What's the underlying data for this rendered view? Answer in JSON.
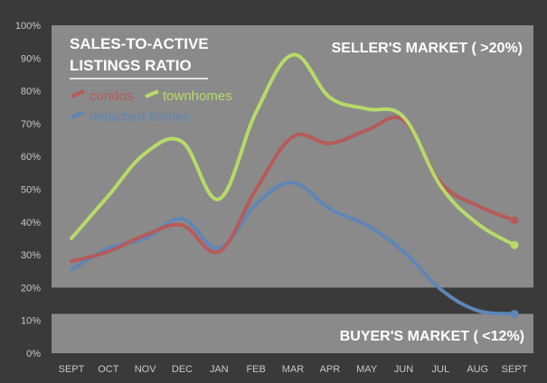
{
  "chart_data": {
    "type": "line",
    "title_lines": [
      "SALES-TO-ACTIVE",
      "LISTINGS RATIO"
    ],
    "categories": [
      "SEPT",
      "OCT",
      "NOV",
      "DEC",
      "JAN",
      "FEB",
      "MAR",
      "APR",
      "MAY",
      "JUN",
      "JUL",
      "AUG",
      "SEPT"
    ],
    "y_ticks": [
      "0%",
      "10%",
      "20%",
      "30%",
      "40%",
      "50%",
      "60%",
      "70%",
      "80%",
      "90%",
      "100%"
    ],
    "ylim": [
      0,
      100
    ],
    "grid": false,
    "legend_position": "top-left",
    "series": [
      {
        "name": "condos",
        "color": "#b65a5a",
        "values": [
          28,
          31,
          36,
          39,
          31,
          50,
          66,
          64,
          68,
          71,
          52,
          45,
          40.5
        ]
      },
      {
        "name": "townhomes",
        "color": "#b7da69",
        "values": [
          35,
          48,
          61,
          64.5,
          47,
          73.5,
          91,
          78,
          74.5,
          72,
          51,
          39.5,
          33
        ]
      },
      {
        "name": "detached homes",
        "color": "#5e86b6",
        "values": [
          25.5,
          32,
          35,
          41,
          32,
          45.5,
          52,
          44,
          39,
          31,
          19.5,
          13,
          12
        ]
      }
    ],
    "annotations": {
      "seller": "SELLER'S MARKET ( >20%)",
      "buyer": "BUYER'S MARKET ( <12%)"
    },
    "bands": {
      "seller_min": 20,
      "buyer_max": 12
    },
    "colors": {
      "background": "#3a3a3a",
      "band": "#8a8a8a",
      "text": "#ffffff",
      "tick_text": "#c8c8c8"
    }
  }
}
